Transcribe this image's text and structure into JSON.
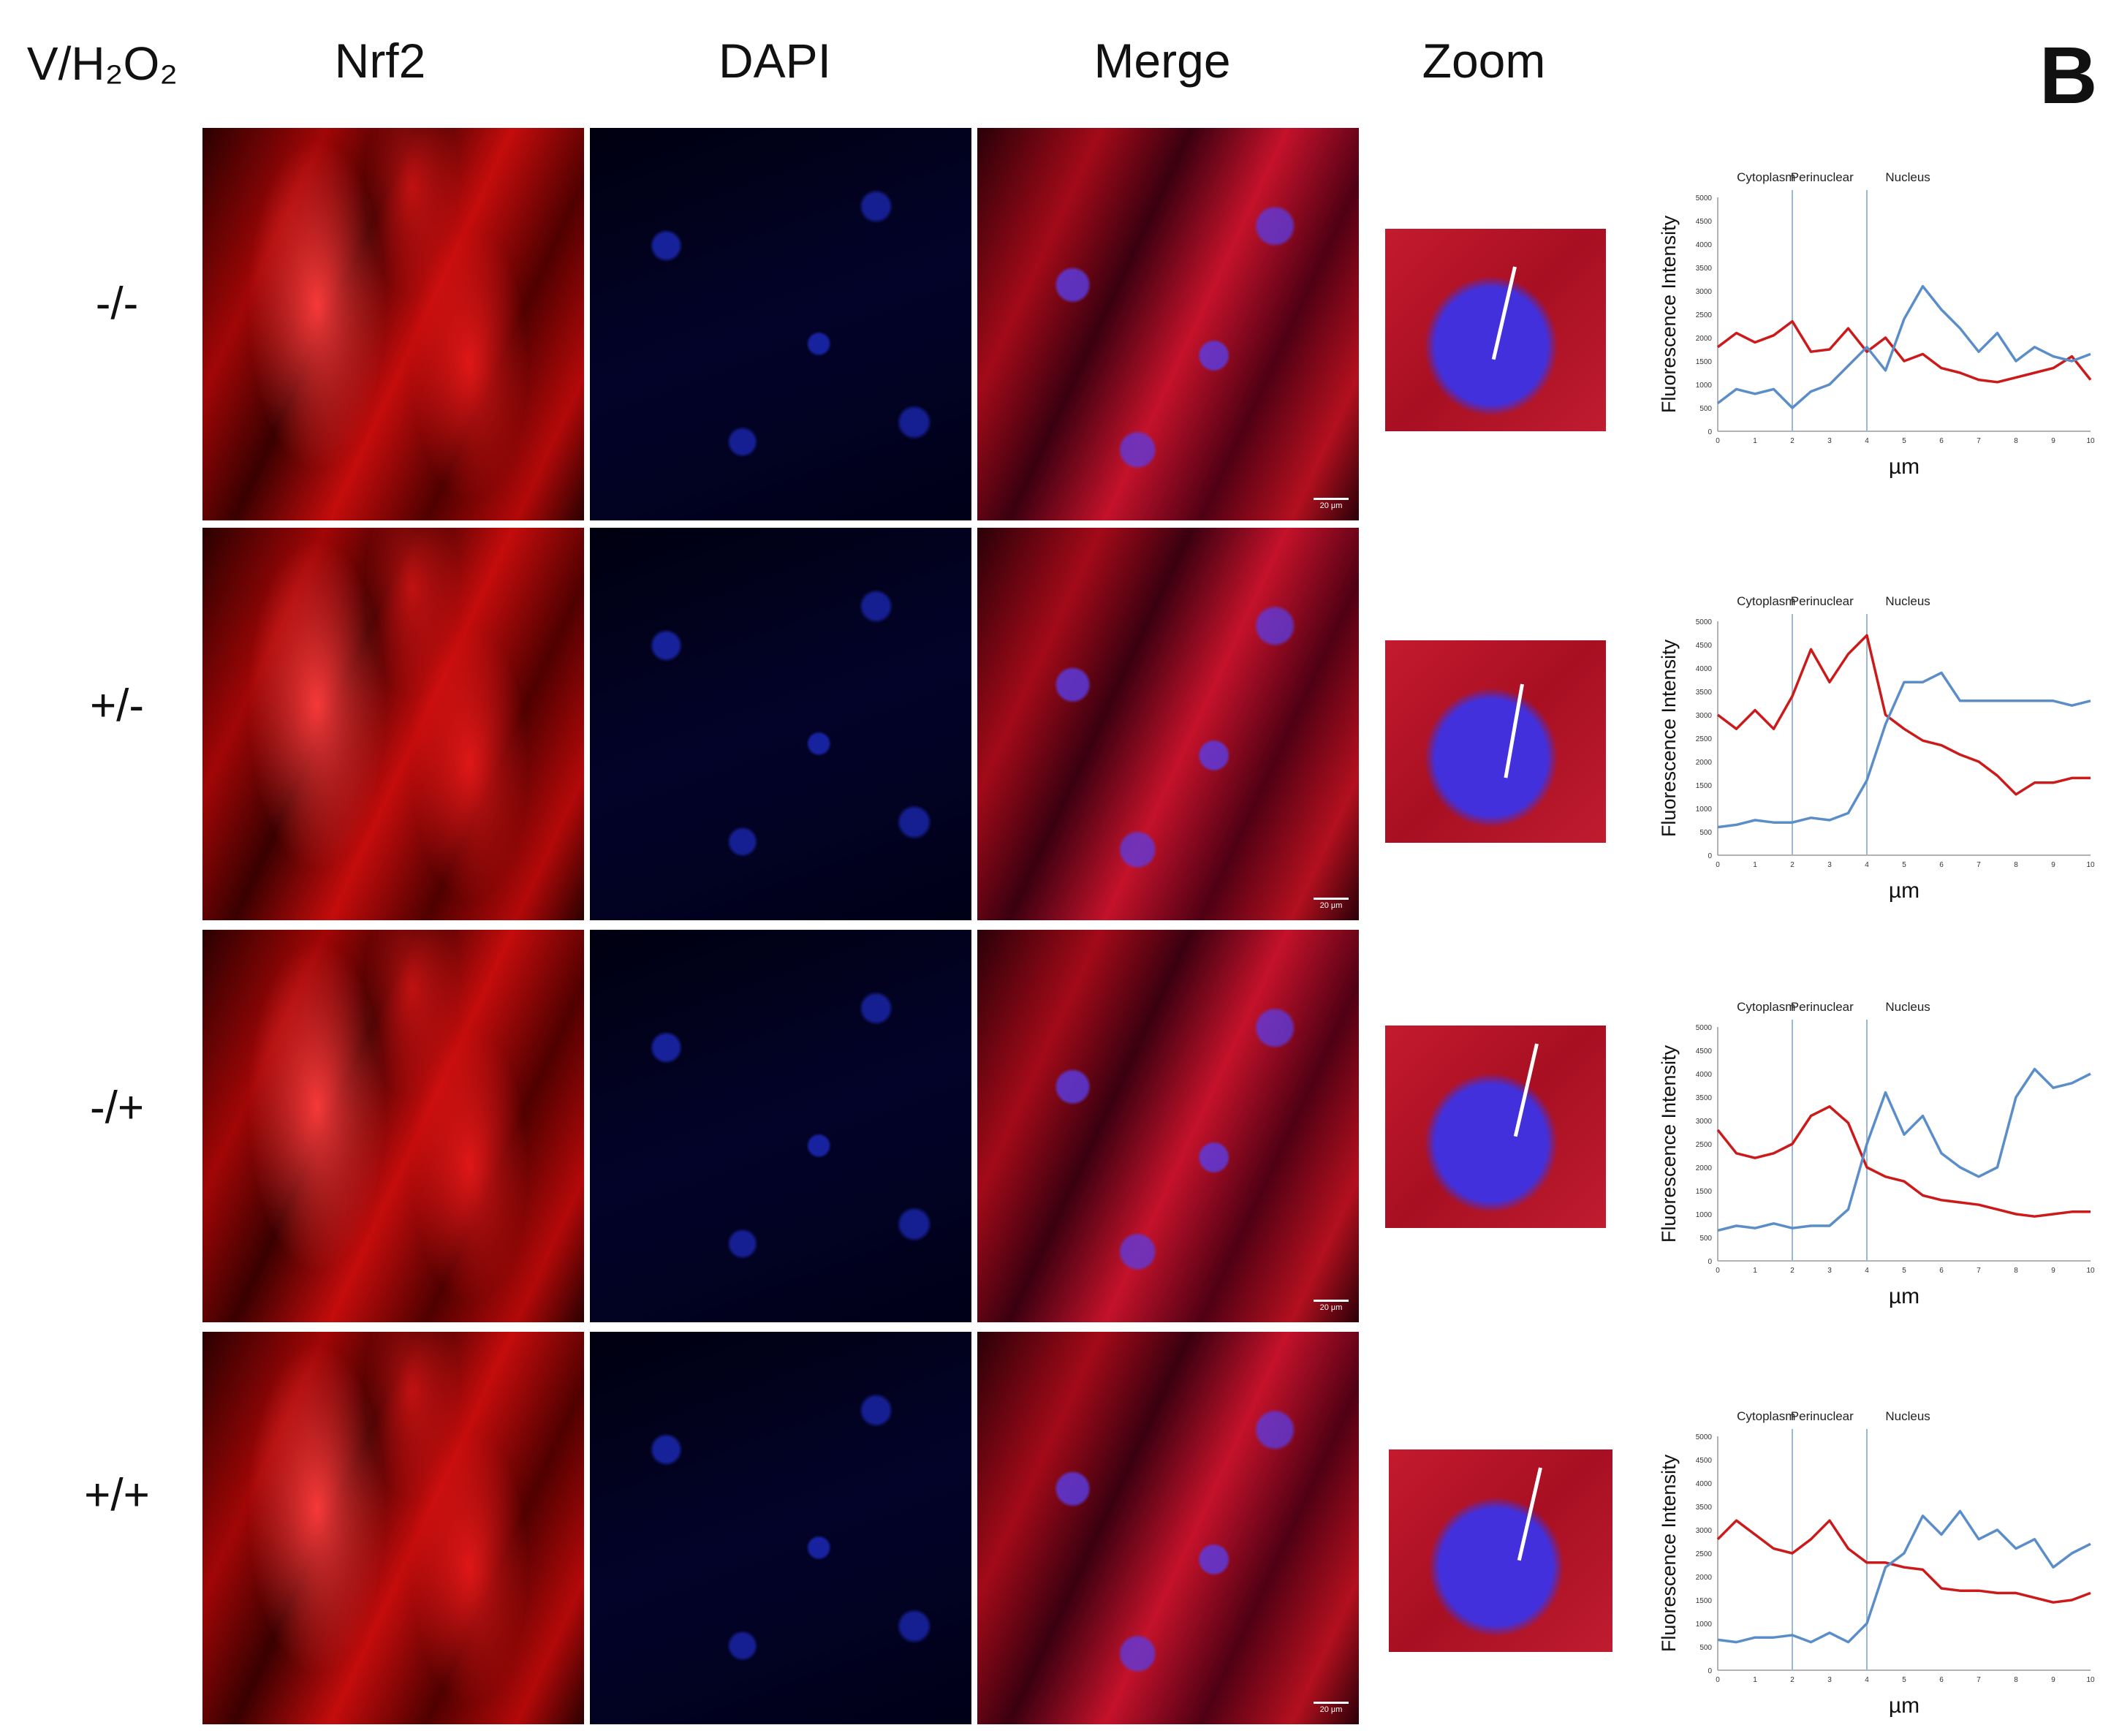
{
  "header": {
    "row_heading": "V/H₂O₂",
    "columns": [
      "Nrf2",
      "DAPI",
      "Merge",
      "Zoom"
    ],
    "panel_label": "B"
  },
  "rows": [
    {
      "label": "-/-"
    },
    {
      "label": "+/-"
    },
    {
      "label": "-/+"
    },
    {
      "label": "+/+"
    }
  ],
  "scale_bar_label": "20 μm",
  "colors": {
    "red_series": "#cc1a1a",
    "blue_series": "#5b8ec8",
    "divider": "#9ab7d9"
  },
  "chart_data": [
    {
      "type": "line",
      "region_labels": [
        "Cytoplasm",
        "Perinuclear",
        "Nucleus"
      ],
      "region_dividers": [
        2,
        4
      ],
      "ylabel": "Fluorescence Intensity",
      "xlabel": "µm",
      "ylim": [
        0,
        5000
      ],
      "xlim": [
        0,
        10
      ],
      "yticks": [
        "0",
        "500",
        "1000",
        "1500",
        "2000",
        "2500",
        "3000",
        "3500",
        "4000",
        "4500",
        "5000"
      ],
      "xticks": [
        "0",
        "1",
        "2",
        "3",
        "4",
        "5",
        "6",
        "7",
        "8",
        "9",
        "10"
      ],
      "x": [
        0,
        0.5,
        1,
        1.5,
        2,
        2.5,
        3,
        3.5,
        4,
        4.5,
        5,
        5.5,
        6,
        6.5,
        7,
        7.5,
        8,
        8.5,
        9,
        9.5,
        10
      ],
      "series": [
        {
          "color": "#cc1a1a",
          "values": [
            1800,
            2100,
            1900,
            2050,
            2350,
            1700,
            1750,
            2200,
            1700,
            2000,
            1500,
            1650,
            1350,
            1250,
            1100,
            1050,
            1150,
            1250,
            1350,
            1600,
            1100
          ]
        },
        {
          "color": "#5b8ec8",
          "values": [
            600,
            900,
            800,
            900,
            500,
            850,
            1000,
            1400,
            1800,
            1300,
            2400,
            3100,
            2600,
            2200,
            1700,
            2100,
            1500,
            1800,
            1600,
            1500,
            1650
          ]
        }
      ]
    },
    {
      "type": "line",
      "region_labels": [
        "Cytoplasm",
        "Perinuclear",
        "Nucleus"
      ],
      "region_dividers": [
        2,
        4
      ],
      "ylabel": "Fluorescence Intensity",
      "xlabel": "µm",
      "ylim": [
        0,
        5000
      ],
      "xlim": [
        0,
        10
      ],
      "yticks": [
        "0",
        "500",
        "1000",
        "1500",
        "2000",
        "2500",
        "3000",
        "3500",
        "4000",
        "4500",
        "5000"
      ],
      "xticks": [
        "0",
        "1",
        "2",
        "3",
        "4",
        "5",
        "6",
        "7",
        "8",
        "9",
        "10"
      ],
      "x": [
        0,
        0.5,
        1,
        1.5,
        2,
        2.5,
        3,
        3.5,
        4,
        4.5,
        5,
        5.5,
        6,
        6.5,
        7,
        7.5,
        8,
        8.5,
        9,
        9.5,
        10
      ],
      "series": [
        {
          "color": "#cc1a1a",
          "values": [
            3000,
            2700,
            3100,
            2700,
            3400,
            4400,
            3700,
            4300,
            4700,
            3000,
            2700,
            2450,
            2350,
            2150,
            2000,
            1700,
            1300,
            1550,
            1550,
            1650,
            1650
          ]
        },
        {
          "color": "#5b8ec8",
          "values": [
            600,
            650,
            750,
            700,
            700,
            800,
            750,
            900,
            1600,
            2800,
            3700,
            3700,
            3900,
            3300,
            3300,
            3300,
            3300,
            3300,
            3300,
            3200,
            3300
          ]
        }
      ]
    },
    {
      "type": "line",
      "region_labels": [
        "Cytoplasm",
        "Perinuclear",
        "Nucleus"
      ],
      "region_dividers": [
        2,
        4
      ],
      "ylabel": "Fluorescence Intensity",
      "xlabel": "µm",
      "ylim": [
        0,
        5000
      ],
      "xlim": [
        0,
        10
      ],
      "yticks": [
        "0",
        "500",
        "1000",
        "1500",
        "2000",
        "2500",
        "3000",
        "3500",
        "4000",
        "4500",
        "5000"
      ],
      "xticks": [
        "0",
        "1",
        "2",
        "3",
        "4",
        "5",
        "6",
        "7",
        "8",
        "9",
        "10"
      ],
      "x": [
        0,
        0.5,
        1,
        1.5,
        2,
        2.5,
        3,
        3.5,
        4,
        4.5,
        5,
        5.5,
        6,
        6.5,
        7,
        7.5,
        8,
        8.5,
        9,
        9.5,
        10
      ],
      "series": [
        {
          "color": "#cc1a1a",
          "values": [
            2800,
            2300,
            2200,
            2300,
            2500,
            3100,
            3300,
            2950,
            2000,
            1800,
            1700,
            1400,
            1300,
            1250,
            1200,
            1100,
            1000,
            950,
            1000,
            1050,
            1050
          ]
        },
        {
          "color": "#5b8ec8",
          "values": [
            650,
            750,
            700,
            800,
            700,
            750,
            750,
            1100,
            2500,
            3600,
            2700,
            3100,
            2300,
            2000,
            1800,
            2000,
            3500,
            4100,
            3700,
            3800,
            4000
          ]
        }
      ]
    },
    {
      "type": "line",
      "region_labels": [
        "Cytoplasm",
        "Perinuclear",
        "Nucleus"
      ],
      "region_dividers": [
        2,
        4
      ],
      "ylabel": "Fluorescence Intensity",
      "xlabel": "µm",
      "ylim": [
        0,
        5000
      ],
      "xlim": [
        0,
        10
      ],
      "yticks": [
        "0",
        "500",
        "1000",
        "1500",
        "2000",
        "2500",
        "3000",
        "3500",
        "4000",
        "4500",
        "5000"
      ],
      "xticks": [
        "0",
        "1",
        "2",
        "3",
        "4",
        "5",
        "6",
        "7",
        "8",
        "9",
        "10"
      ],
      "x": [
        0,
        0.5,
        1,
        1.5,
        2,
        2.5,
        3,
        3.5,
        4,
        4.5,
        5,
        5.5,
        6,
        6.5,
        7,
        7.5,
        8,
        8.5,
        9,
        9.5,
        10
      ],
      "series": [
        {
          "color": "#cc1a1a",
          "values": [
            2800,
            3200,
            2900,
            2600,
            2500,
            2800,
            3200,
            2600,
            2300,
            2300,
            2200,
            2150,
            1750,
            1700,
            1700,
            1650,
            1650,
            1550,
            1450,
            1500,
            1650
          ]
        },
        {
          "color": "#5b8ec8",
          "values": [
            650,
            600,
            700,
            700,
            750,
            600,
            800,
            600,
            1000,
            2200,
            2500,
            3300,
            2900,
            3400,
            2800,
            3000,
            2600,
            2800,
            2200,
            2500,
            2700
          ]
        }
      ]
    }
  ]
}
